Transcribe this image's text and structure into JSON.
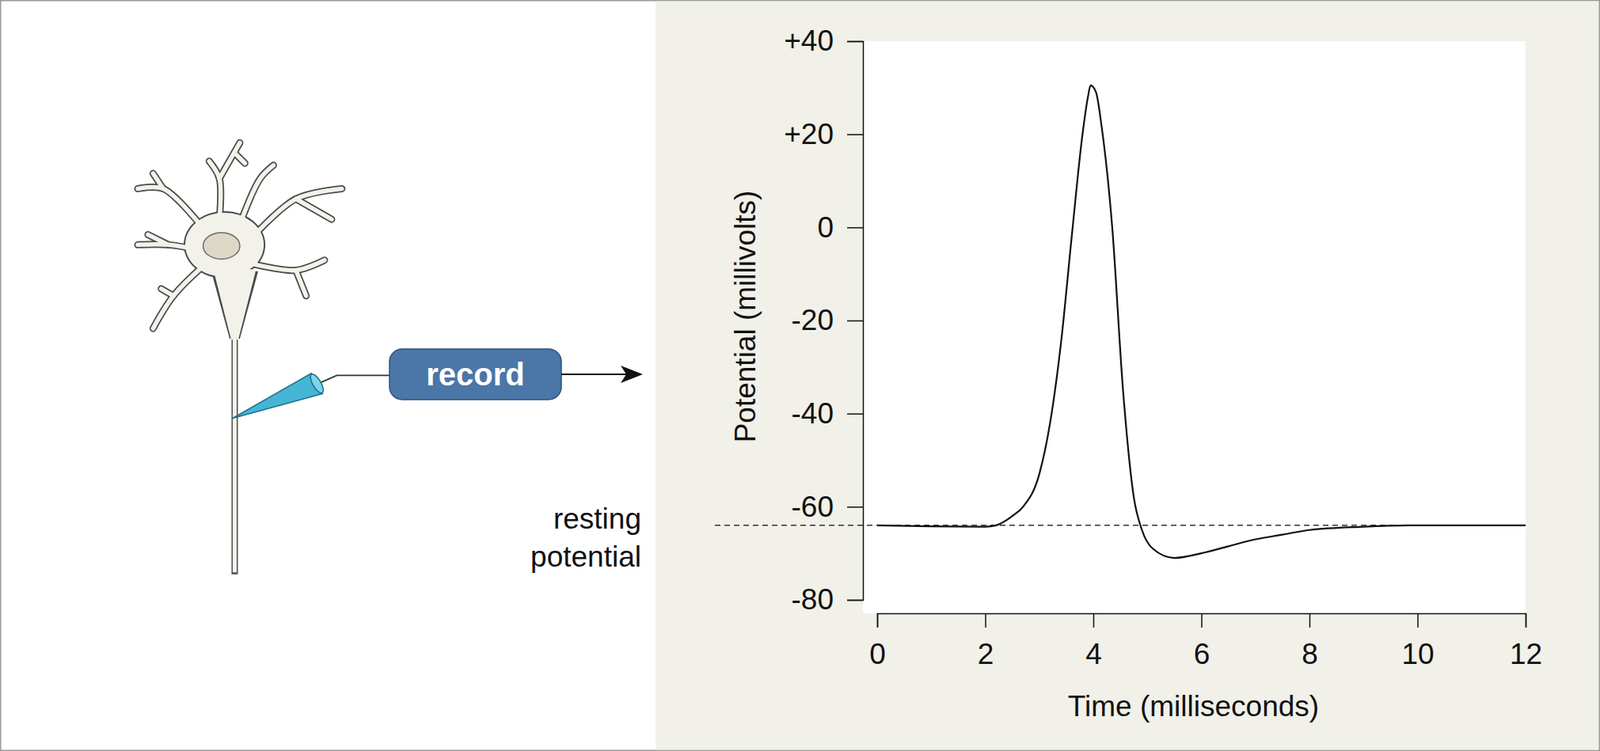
{
  "chart_data": {
    "type": "line",
    "x_label": "Time (milliseconds)",
    "y_label": "Potential (millivolts)",
    "xlim": [
      0,
      12
    ],
    "xticks": [
      0,
      2,
      4,
      6,
      8,
      10,
      12
    ],
    "ylim": [
      -80,
      40
    ],
    "yticks": [
      {
        "value": 40,
        "label": "+40"
      },
      {
        "value": 20,
        "label": "+20"
      },
      0,
      -20,
      -40,
      -60,
      -80
    ],
    "x": [
      0,
      1,
      2,
      2.2,
      2.5,
      2.7,
      3,
      3.2,
      3.4,
      3.6,
      3.8,
      3.9,
      3.95,
      4.05,
      4.15,
      4.35,
      4.55,
      4.75,
      4.9,
      5.1,
      5.5,
      6,
      6.5,
      7,
      7.5,
      8,
      9,
      10,
      11,
      12
    ],
    "values": [
      -64,
      -64.2,
      -64.3,
      -64,
      -62,
      -60,
      -53,
      -42,
      -25,
      -2,
      20,
      28,
      30.5,
      29,
      22,
      0,
      -35,
      -58,
      -65,
      -69,
      -71,
      -70,
      -68.5,
      -67,
      -66,
      -65,
      -64.3,
      -64,
      -64,
      -64
    ],
    "color": "#111111",
    "resting_potential": {
      "value": -64,
      "label_lines": [
        "resting",
        "potential"
      ]
    },
    "record_label": "record"
  }
}
